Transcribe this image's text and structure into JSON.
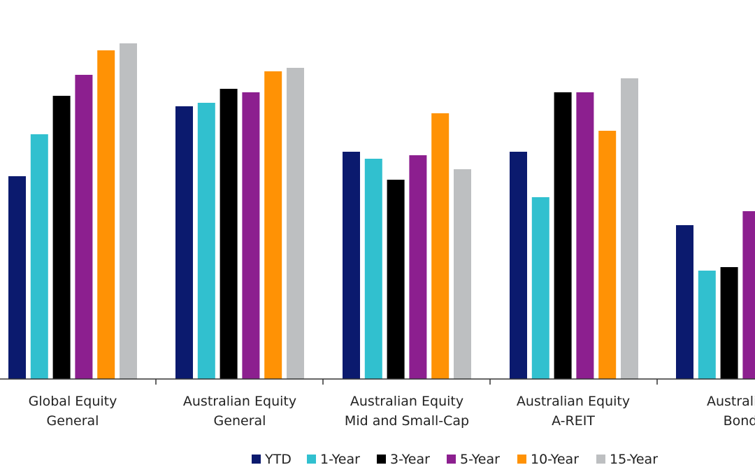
{
  "chart_data": {
    "type": "bar",
    "categories": [
      [
        "Global Equity",
        "General"
      ],
      [
        "Australian Equity",
        "General"
      ],
      [
        "Australian Equity",
        "Mid and Small-Cap"
      ],
      [
        "Australian Equity",
        "A-REIT"
      ],
      [
        "Australian",
        "Bond"
      ]
    ],
    "series": [
      {
        "name": "YTD",
        "color": "#0b1a6e",
        "values": [
          5.8,
          7.8,
          6.5,
          6.5,
          4.4
        ]
      },
      {
        "name": "1-Year",
        "color": "#31c0cf",
        "values": [
          7.0,
          7.9,
          6.3,
          5.2,
          3.1
        ]
      },
      {
        "name": "3-Year",
        "color": "#000000",
        "values": [
          8.1,
          8.3,
          5.7,
          8.2,
          3.2
        ]
      },
      {
        "name": "5-Year",
        "color": "#8c1f8f",
        "values": [
          8.7,
          8.2,
          6.4,
          8.2,
          4.8
        ]
      },
      {
        "name": "10-Year",
        "color": "#ff9205",
        "values": [
          9.4,
          8.8,
          7.6,
          7.1,
          null
        ]
      },
      {
        "name": "15-Year",
        "color": "#bdbfc1",
        "values": [
          9.6,
          8.9,
          6.0,
          8.6,
          null
        ]
      }
    ],
    "ylim": [
      0,
      10
    ],
    "grid": false,
    "legend": "bottom"
  }
}
